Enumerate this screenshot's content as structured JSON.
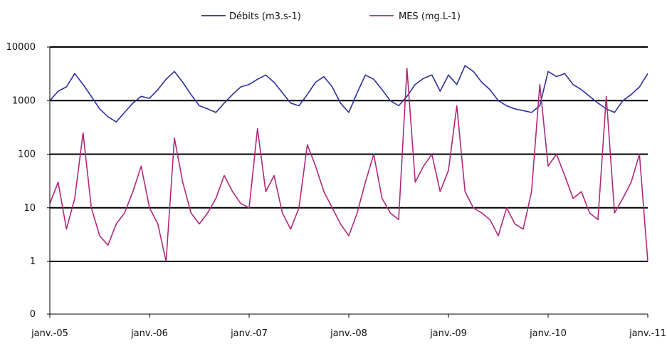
{
  "chart_data": {
    "type": "line",
    "title": "",
    "xlabel": "",
    "ylabel": "",
    "y_scale": "log",
    "ylim": [
      0.5,
      10000
    ],
    "y_ticks": [
      {
        "value": 10000,
        "label": "10000"
      },
      {
        "value": 1000,
        "label": "1000"
      },
      {
        "value": 100,
        "label": "100"
      },
      {
        "value": 10,
        "label": "10"
      },
      {
        "value": 1,
        "label": "1"
      },
      {
        "value": 0.5,
        "label": "0"
      }
    ],
    "x_ticks": [
      "janv.-05",
      "janv.-06",
      "janv.-07",
      "janv.-08",
      "janv.-09",
      "janv.-10",
      "janv.-11"
    ],
    "xlim": [
      "2005-01",
      "2011-01"
    ],
    "gridlines": [
      1,
      10,
      100,
      1000,
      10000
    ],
    "legend_position": "top",
    "series": [
      {
        "name": "Débits (m3.s-1)",
        "color": "#2b2f9e",
        "x": [
          "2005-01",
          "2005-02",
          "2005-03",
          "2005-04",
          "2005-05",
          "2005-06",
          "2005-07",
          "2005-08",
          "2005-09",
          "2005-10",
          "2005-11",
          "2005-12",
          "2006-01",
          "2006-02",
          "2006-03",
          "2006-04",
          "2006-05",
          "2006-06",
          "2006-07",
          "2006-08",
          "2006-09",
          "2006-10",
          "2006-11",
          "2006-12",
          "2007-01",
          "2007-02",
          "2007-03",
          "2007-04",
          "2007-05",
          "2007-06",
          "2007-07",
          "2007-08",
          "2007-09",
          "2007-10",
          "2007-11",
          "2007-12",
          "2008-01",
          "2008-02",
          "2008-03",
          "2008-04",
          "2008-05",
          "2008-06",
          "2008-07",
          "2008-08",
          "2008-09",
          "2008-10",
          "2008-11",
          "2008-12",
          "2009-01",
          "2009-02",
          "2009-03",
          "2009-04",
          "2009-05",
          "2009-06",
          "2009-07",
          "2009-08",
          "2009-09",
          "2009-10",
          "2009-11",
          "2009-12",
          "2010-01",
          "2010-02",
          "2010-03",
          "2010-04",
          "2010-05",
          "2010-06",
          "2010-07",
          "2010-08",
          "2010-09",
          "2010-10",
          "2010-11",
          "2010-12",
          "2011-01"
        ],
        "values": [
          1000,
          1500,
          1800,
          3200,
          2000,
          1200,
          700,
          500,
          400,
          600,
          900,
          1200,
          1100,
          1600,
          2500,
          3500,
          2200,
          1300,
          800,
          700,
          600,
          900,
          1300,
          1800,
          2000,
          2500,
          3000,
          2200,
          1400,
          900,
          800,
          1300,
          2200,
          2800,
          1800,
          900,
          600,
          1400,
          3000,
          2500,
          1600,
          1000,
          800,
          1200,
          2000,
          2600,
          3000,
          1500,
          3000,
          2000,
          4500,
          3500,
          2200,
          1600,
          1000,
          800,
          700,
          650,
          600,
          800,
          3500,
          2800,
          3200,
          2000,
          1600,
          1200,
          900,
          700,
          600,
          1000,
          1300,
          1800,
          3200
        ]
      },
      {
        "name": "MES (mg.L-1)",
        "color": "#b0287a",
        "x": [
          "2005-01",
          "2005-02",
          "2005-03",
          "2005-04",
          "2005-05",
          "2005-06",
          "2005-07",
          "2005-08",
          "2005-09",
          "2005-10",
          "2005-11",
          "2005-12",
          "2006-01",
          "2006-02",
          "2006-03",
          "2006-04",
          "2006-05",
          "2006-06",
          "2006-07",
          "2006-08",
          "2006-09",
          "2006-10",
          "2006-11",
          "2006-12",
          "2007-01",
          "2007-02",
          "2007-03",
          "2007-04",
          "2007-05",
          "2007-06",
          "2007-07",
          "2007-08",
          "2007-09",
          "2007-10",
          "2007-11",
          "2007-12",
          "2008-01",
          "2008-02",
          "2008-03",
          "2008-04",
          "2008-05",
          "2008-06",
          "2008-07",
          "2008-08",
          "2008-09",
          "2008-10",
          "2008-11",
          "2008-12",
          "2009-01",
          "2009-02",
          "2009-03",
          "2009-04",
          "2009-05",
          "2009-06",
          "2009-07",
          "2009-08",
          "2009-09",
          "2009-10",
          "2009-11",
          "2009-12",
          "2010-01",
          "2010-02",
          "2010-03",
          "2010-04",
          "2010-05",
          "2010-06",
          "2010-07",
          "2010-08",
          "2010-09",
          "2010-10",
          "2010-11",
          "2010-12",
          "2011-01"
        ],
        "values": [
          12,
          30,
          4,
          15,
          250,
          10,
          3,
          2,
          5,
          8,
          20,
          60,
          10,
          5,
          1,
          200,
          30,
          8,
          5,
          8,
          15,
          40,
          20,
          12,
          10,
          300,
          20,
          40,
          8,
          4,
          10,
          150,
          60,
          20,
          10,
          5,
          3,
          8,
          30,
          100,
          15,
          8,
          6,
          4000,
          30,
          60,
          100,
          20,
          50,
          800,
          20,
          10,
          8,
          6,
          3,
          10,
          5,
          4,
          20,
          2000,
          60,
          100,
          40,
          15,
          20,
          8,
          6,
          1200,
          8,
          15,
          30,
          100,
          1
        ]
      }
    ]
  }
}
